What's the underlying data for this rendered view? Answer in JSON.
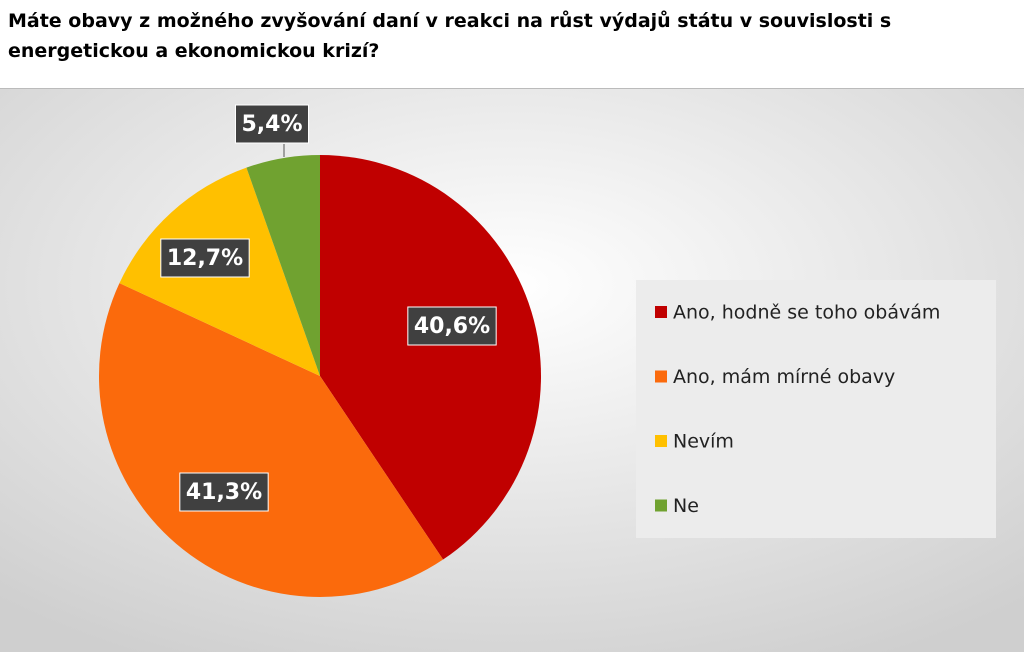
{
  "chart_data": {
    "type": "pie",
    "title": "Máte obavy z možného zvyšování daní v reakci na růst výdajů státu v souvislosti s energetickou a ekonomickou krizí?",
    "categories": [
      "Ano, hodně se toho obávám",
      "Ano, mám mírné obavy",
      "Nevím",
      "Ne"
    ],
    "values": [
      40.6,
      41.3,
      12.7,
      5.4
    ],
    "value_labels": [
      "40,6%",
      "41,3%",
      "12,7%",
      "5,4%"
    ],
    "colors": [
      "#c00000",
      "#fb6a0c",
      "#ffc000",
      "#70a230"
    ],
    "legend": "right"
  }
}
